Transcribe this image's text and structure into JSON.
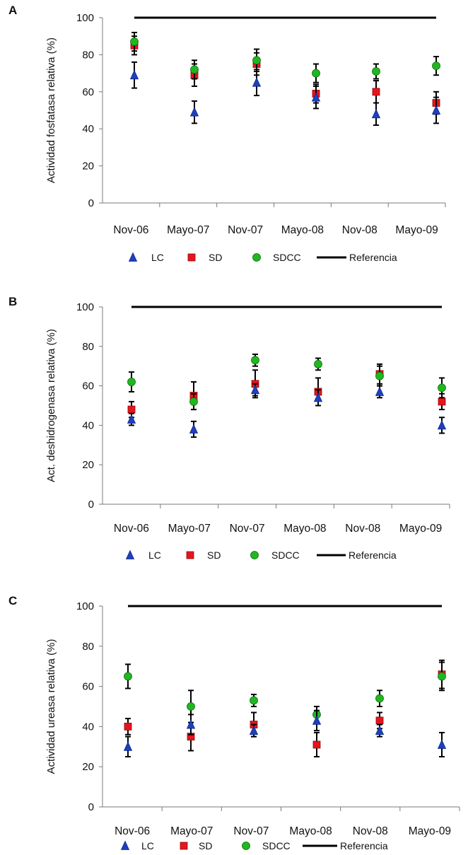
{
  "colors": {
    "LC": "#1f3fbf",
    "SD": "#e8141c",
    "SDCC": "#1fb81f",
    "Referencia": "#000000",
    "axis": "#7a7a7a",
    "errorbar": "#000000"
  },
  "legend": {
    "LC": "LC",
    "SD": "SD",
    "SDCC": "SDCC",
    "Referencia": "Referencia"
  },
  "chart_data": [
    {
      "panel": "A",
      "type": "scatter",
      "ylabel": "Actividad fosfatasa relativa (%)",
      "xlabel": "",
      "ylim": [
        0,
        100
      ],
      "yticks": [
        0,
        20,
        40,
        60,
        80,
        100
      ],
      "categories": [
        "Nov-06",
        "Mayo-07",
        "Nov-07",
        "Mayo-08",
        "Nov-08",
        "Mayo-09"
      ],
      "reference": 100,
      "series": [
        {
          "name": "LC",
          "marker": "triangle",
          "values": [
            69,
            49,
            65,
            57,
            48,
            50
          ],
          "errors": [
            7,
            6,
            7,
            6,
            6,
            7
          ]
        },
        {
          "name": "SD",
          "marker": "square",
          "values": [
            85,
            69,
            75,
            59,
            60,
            54
          ],
          "errors": [
            5,
            6,
            6,
            5,
            6,
            6
          ]
        },
        {
          "name": "SDCC",
          "marker": "circle",
          "values": [
            87,
            72,
            77,
            70,
            71,
            74
          ],
          "errors": [
            5,
            5,
            6,
            5,
            4,
            5
          ]
        }
      ]
    },
    {
      "panel": "B",
      "type": "scatter",
      "ylabel": "Act. deshidrogenasa relativa (%)",
      "xlabel": "",
      "ylim": [
        0,
        100
      ],
      "yticks": [
        0,
        20,
        40,
        60,
        80,
        100
      ],
      "categories": [
        "Nov-06",
        "Mayo-07",
        "Nov-07",
        "Mayo-08",
        "Nov-08",
        "Mayo-09"
      ],
      "reference": 100,
      "series": [
        {
          "name": "LC",
          "marker": "triangle",
          "values": [
            43,
            38,
            58,
            54,
            57,
            40
          ],
          "errors": [
            3,
            4,
            3,
            4,
            3,
            4
          ]
        },
        {
          "name": "SD",
          "marker": "square",
          "values": [
            48,
            55,
            61,
            57,
            66,
            52
          ],
          "errors": [
            4,
            7,
            7,
            7,
            5,
            4
          ]
        },
        {
          "name": "SDCC",
          "marker": "circle",
          "values": [
            62,
            52,
            73,
            71,
            65,
            59
          ],
          "errors": [
            5,
            4,
            3,
            3,
            5,
            5
          ]
        }
      ]
    },
    {
      "panel": "C",
      "type": "scatter",
      "ylabel": "Actividad ureasa relativa (%)",
      "xlabel": "",
      "ylim": [
        0,
        100
      ],
      "yticks": [
        0,
        20,
        40,
        60,
        80,
        100
      ],
      "categories": [
        "Nov-06",
        "Mayo-07",
        "Nov-07",
        "Mayo-08",
        "Nov-08",
        "Mayo-09"
      ],
      "reference": 100,
      "series": [
        {
          "name": "LC",
          "marker": "triangle",
          "values": [
            30,
            41,
            38,
            43,
            38,
            31
          ],
          "errors": [
            5,
            5,
            3,
            5,
            3,
            6
          ]
        },
        {
          "name": "SD",
          "marker": "square",
          "values": [
            40,
            35,
            41,
            31,
            43,
            66
          ],
          "errors": [
            4,
            7,
            6,
            6,
            4,
            7
          ]
        },
        {
          "name": "SDCC",
          "marker": "circle",
          "values": [
            65,
            50,
            53,
            46,
            54,
            65
          ],
          "errors": [
            6,
            8,
            3,
            4,
            4,
            7
          ]
        }
      ]
    }
  ]
}
